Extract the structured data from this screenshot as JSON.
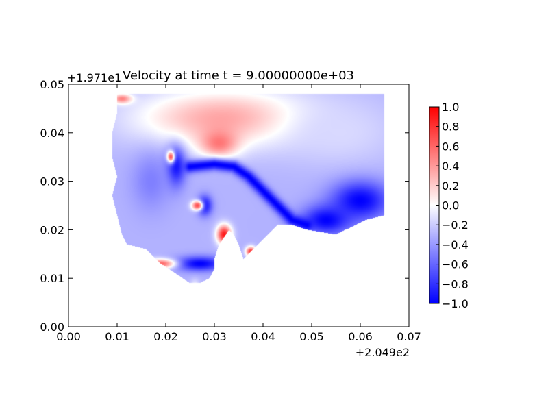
{
  "chart_data": {
    "type": "heatmap",
    "title": "Velocity at time t = 9.00000000e+03",
    "xlabel": "",
    "ylabel": "",
    "x_offset_label": "+2.049e2",
    "y_offset_label": "+1.971e1",
    "xlim": [
      0.0,
      0.07
    ],
    "ylim": [
      0.0,
      0.05
    ],
    "x_ticks": [
      "0.00",
      "0.01",
      "0.02",
      "0.03",
      "0.04",
      "0.05",
      "0.06",
      "0.07"
    ],
    "y_ticks": [
      "0.00",
      "0.01",
      "0.02",
      "0.03",
      "0.04",
      "0.05"
    ],
    "colorbar": {
      "range": [
        -1.0,
        1.0
      ],
      "ticks": [
        "1.0",
        "0.8",
        "0.6",
        "0.4",
        "0.2",
        "0.0",
        "−0.2",
        "−0.4",
        "−0.6",
        "−0.8",
        "−1.0"
      ],
      "colormap": [
        "#0000ff",
        "#ffffff",
        "#ff0000"
      ]
    },
    "field": {
      "domain_polygon": [
        [
          0.01,
          0.048
        ],
        [
          0.065,
          0.048
        ],
        [
          0.065,
          0.023
        ],
        [
          0.061,
          0.022
        ],
        [
          0.055,
          0.019
        ],
        [
          0.049,
          0.02
        ],
        [
          0.046,
          0.021
        ],
        [
          0.043,
          0.021
        ],
        [
          0.041,
          0.019
        ],
        [
          0.038,
          0.016
        ],
        [
          0.036,
          0.014
        ],
        [
          0.035,
          0.017
        ],
        [
          0.034,
          0.019
        ],
        [
          0.033,
          0.02
        ],
        [
          0.031,
          0.017
        ],
        [
          0.03,
          0.014
        ],
        [
          0.03,
          0.012
        ],
        [
          0.029,
          0.01
        ],
        [
          0.027,
          0.009
        ],
        [
          0.025,
          0.009
        ],
        [
          0.022,
          0.011
        ],
        [
          0.019,
          0.013
        ],
        [
          0.016,
          0.016
        ],
        [
          0.012,
          0.017
        ],
        [
          0.011,
          0.019
        ],
        [
          0.01,
          0.023
        ],
        [
          0.009,
          0.027
        ],
        [
          0.01,
          0.031
        ],
        [
          0.009,
          0.035
        ],
        [
          0.009,
          0.04
        ],
        [
          0.01,
          0.044
        ]
      ],
      "background_value": 0.0,
      "base_value": -0.3,
      "features": [
        {
          "x": 0.032,
          "y": 0.043,
          "rx": 0.018,
          "ry": 0.006,
          "v": 0.35
        },
        {
          "x": 0.031,
          "y": 0.038,
          "rx": 0.004,
          "ry": 0.003,
          "v": 0.55
        },
        {
          "x": 0.056,
          "y": 0.04,
          "rx": 0.012,
          "ry": 0.007,
          "v": -0.15
        },
        {
          "x": 0.06,
          "y": 0.026,
          "rx": 0.006,
          "ry": 0.004,
          "v": -1.0
        },
        {
          "x": 0.053,
          "y": 0.022,
          "rx": 0.005,
          "ry": 0.003,
          "v": -1.0
        },
        {
          "x": 0.022,
          "y": 0.033,
          "rx": 0.002,
          "ry": 0.004,
          "v": -1.0
        },
        {
          "x": 0.028,
          "y": 0.025,
          "rx": 0.0015,
          "ry": 0.002,
          "v": -1.0
        },
        {
          "x": 0.027,
          "y": 0.013,
          "rx": 0.005,
          "ry": 0.0015,
          "v": -1.0
        },
        {
          "x": 0.032,
          "y": 0.019,
          "rx": 0.0015,
          "ry": 0.002,
          "v": 0.9
        },
        {
          "x": 0.0265,
          "y": 0.025,
          "rx": 0.0012,
          "ry": 0.001,
          "v": 0.7
        },
        {
          "x": 0.019,
          "y": 0.013,
          "rx": 0.003,
          "ry": 0.001,
          "v": 0.6
        },
        {
          "x": 0.021,
          "y": 0.035,
          "rx": 0.0008,
          "ry": 0.0012,
          "v": 0.9
        },
        {
          "x": 0.0375,
          "y": 0.0155,
          "rx": 0.001,
          "ry": 0.001,
          "v": 0.8
        },
        {
          "x": 0.011,
          "y": 0.047,
          "rx": 0.002,
          "ry": 0.001,
          "v": 0.5
        },
        {
          "x": 0.026,
          "y": 0.007,
          "rx": 0.001,
          "ry": 0.002,
          "v": 0.3
        },
        {
          "x": 0.017,
          "y": 0.03,
          "rx": 0.004,
          "ry": 0.006,
          "v": -0.5
        }
      ],
      "front_curve": [
        [
          0.025,
          0.033
        ],
        [
          0.03,
          0.0335
        ],
        [
          0.034,
          0.033
        ],
        [
          0.037,
          0.031
        ],
        [
          0.04,
          0.028
        ],
        [
          0.043,
          0.025
        ],
        [
          0.046,
          0.022
        ],
        [
          0.049,
          0.021
        ]
      ],
      "front_value": -1.0
    }
  }
}
